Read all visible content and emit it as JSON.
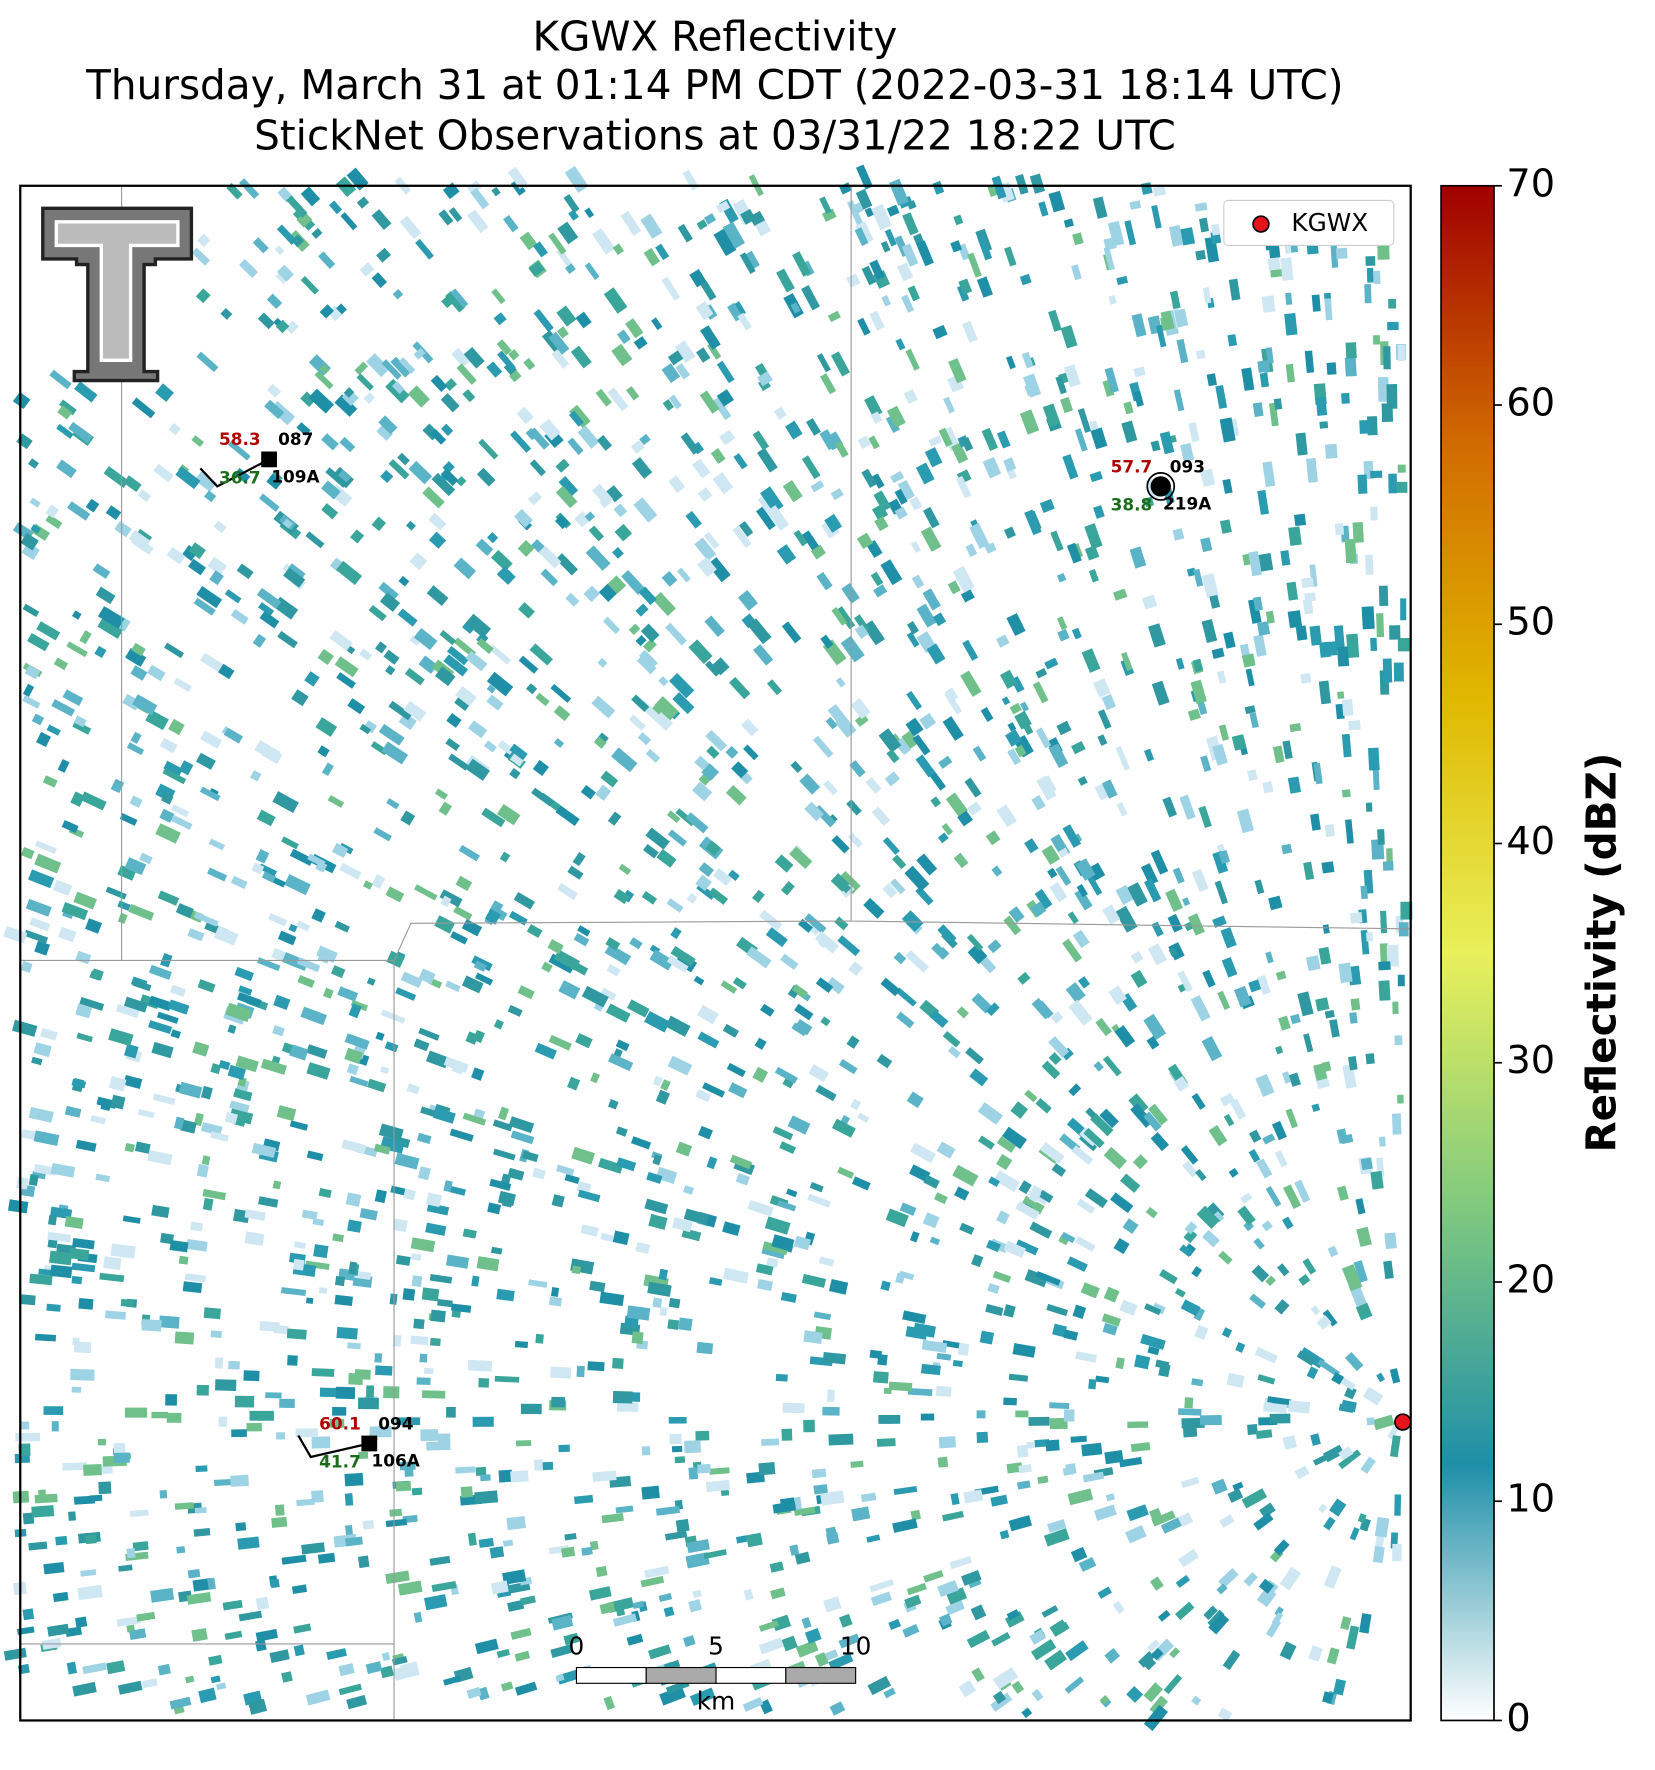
{
  "title": [
    "KGWX Reflectivity",
    "Thursday, March 31 at 01:14 PM CDT (2022-03-31 18:14 UTC)",
    "StickNet Observations at 03/31/22 18:22 UTC"
  ],
  "colorbar": {
    "label": "Reflectivity (dBZ)",
    "lim": [
      0,
      70
    ],
    "ticks": [
      0,
      10,
      20,
      30,
      40,
      50,
      60,
      70
    ],
    "colors": [
      "#ffffff",
      "#1f8fa8",
      "#7fc97f",
      "#e8f05a",
      "#e0b800",
      "#d06a00",
      "#a00000"
    ]
  },
  "legend": {
    "label": "KGWX",
    "color": "#e8141b"
  },
  "stations": [
    {
      "temperature": 58.3,
      "dewpoint": 36.7,
      "id": "087",
      "probe": "109A"
    },
    {
      "temperature": 57.7,
      "dewpoint": 38.8,
      "id": "093",
      "probe": "219A"
    },
    {
      "temperature": 60.1,
      "dewpoint": 41.7,
      "id": "094",
      "probe": "106A"
    }
  ],
  "scale_bar": {
    "ticks": [
      0,
      5,
      10
    ],
    "unit": "km"
  }
}
